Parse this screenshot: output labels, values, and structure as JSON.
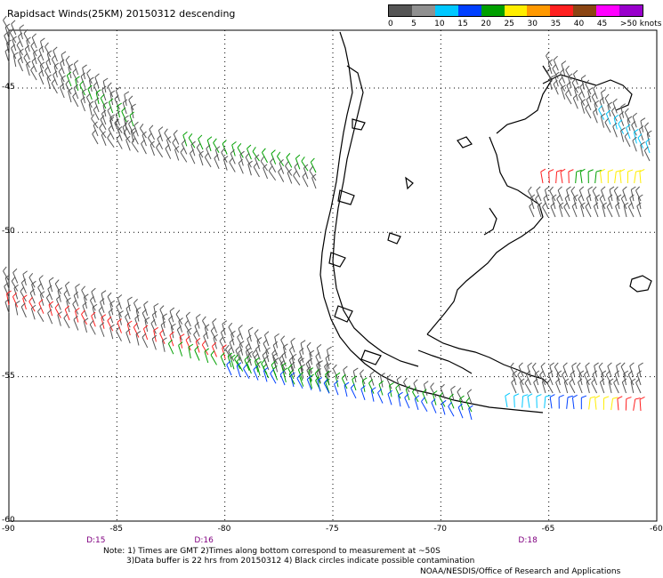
{
  "title": "Rapidsact Winds(25KM) 20150312 descending",
  "legend": {
    "labels": [
      "0",
      "5",
      "10",
      "15",
      "20",
      "25",
      "30",
      "35",
      "40",
      "45",
      ">50 knots"
    ],
    "colors": [
      "#555555",
      "#909090",
      "#00c8ff",
      "#0040ff",
      "#00a000",
      "#ffee00",
      "#ff9900",
      "#ff2020",
      "#8b4513",
      "#ff00ff",
      "#9900cc"
    ]
  },
  "axes": {
    "x_ticks": [
      "-90",
      "-85",
      "-80",
      "-75",
      "-70",
      "-65",
      "-60"
    ],
    "y_ticks": [
      "-45",
      "-50",
      "-55",
      "-60"
    ],
    "time_labels": [
      "D:15",
      "D:16",
      "D:18"
    ]
  },
  "notes": [
    "Note: 1) Times are GMT 2)Times along bottom correspond to measurement at ~50S",
    "3)Data buffer is 22 hrs from 20150312 4) Black circles indicate possible contamination"
  ],
  "credit": "NOAA/NESDIS/Office of Research and Applications",
  "map": {
    "region": "Southern South America (Patagonia, Tierra del Fuego)",
    "coastline_color": "#000000",
    "grid": "dotted",
    "lon_range": [
      -90,
      -60
    ],
    "lat_range": [
      -60,
      -43
    ]
  }
}
